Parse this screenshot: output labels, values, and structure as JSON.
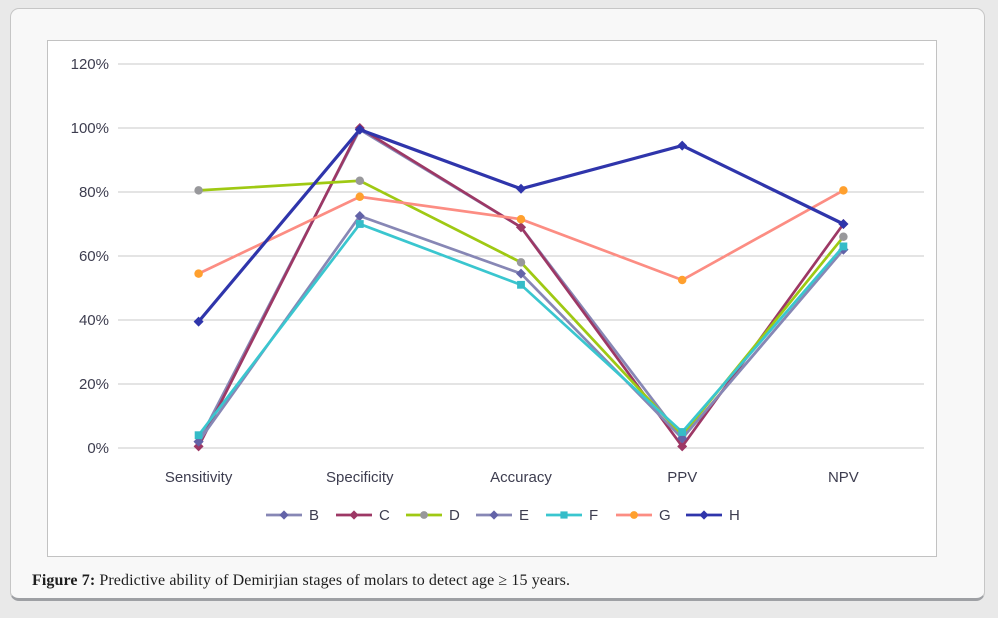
{
  "figure": {
    "caption_label": "Figure 7:",
    "caption_text": " Predictive ability of Demirjian stages of molars to detect age ≥ 15 years."
  },
  "chart_data": {
    "type": "line",
    "title": "",
    "xlabel": "",
    "ylabel": "",
    "categories": [
      "Sensitivity",
      "Specificity",
      "Accuracy",
      "PPV",
      "NPV"
    ],
    "yticks": [
      "0%",
      "20%",
      "40%",
      "60%",
      "80%",
      "100%",
      "120%"
    ],
    "ylim": [
      0,
      120
    ],
    "grid": true,
    "legend_position": "bottom",
    "series": [
      {
        "name": "B",
        "color": "#8787B5",
        "marker": "diamond",
        "marker_color": "#6363A8",
        "values": [
          2,
          99.5,
          69,
          3,
          62
        ]
      },
      {
        "name": "C",
        "color": "#9D3865",
        "marker": "diamond",
        "marker_color": "#9D3865",
        "values": [
          0.5,
          100,
          69,
          0.5,
          70
        ]
      },
      {
        "name": "D",
        "color": "#9FC913",
        "marker": "circle",
        "marker_color": "#98989B",
        "values": [
          80.5,
          83.5,
          58,
          4,
          66
        ]
      },
      {
        "name": "E",
        "color": "#8787B5",
        "marker": "diamond",
        "marker_color": "#6363A8",
        "values": [
          2,
          72.5,
          54.5,
          3,
          62
        ]
      },
      {
        "name": "F",
        "color": "#3AC6CF",
        "marker": "square",
        "marker_color": "#35BCC8",
        "values": [
          4,
          70,
          51,
          5,
          63
        ]
      },
      {
        "name": "G",
        "color": "#FC8D83",
        "marker": "circle",
        "marker_color": "#FFA02E",
        "values": [
          54.5,
          78.5,
          71.5,
          52.5,
          80.5
        ]
      },
      {
        "name": "H",
        "color": "#2F35AB",
        "marker": "diamond",
        "marker_color": "#2F35AB",
        "values": [
          39.5,
          99.5,
          81,
          94.5,
          70
        ]
      }
    ]
  },
  "style": {
    "grid_color": "#C9C9C9",
    "axis_text_color": "#3D3D4F"
  }
}
